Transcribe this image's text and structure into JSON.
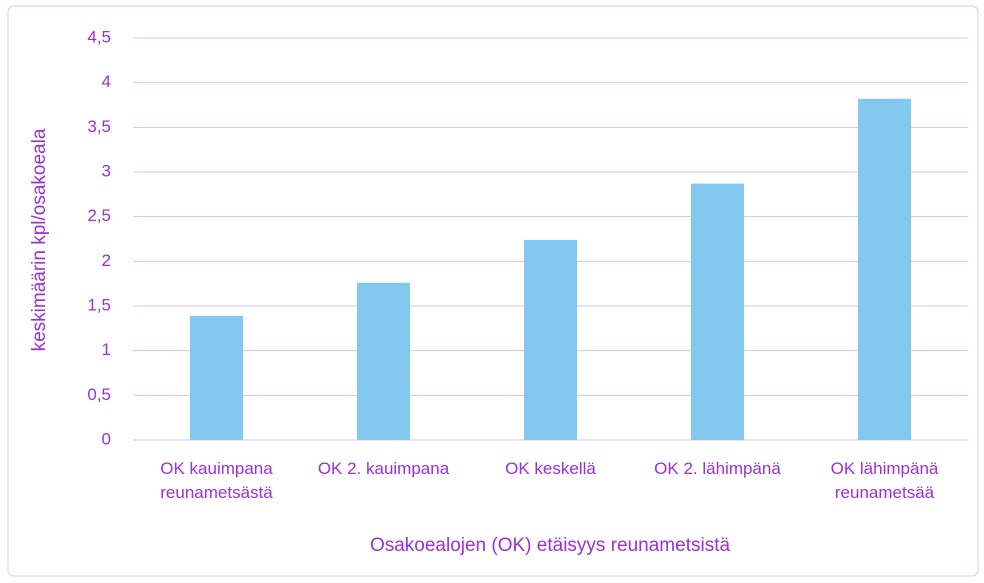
{
  "chart_data": {
    "type": "bar",
    "xlabel": "Osakoealojen (OK) etäisyys reunametsistä",
    "ylabel": "keskimäärin kpl/osakoeala",
    "categories": [
      "OK kauimpana reunametsästä",
      "OK 2. kauimpana",
      "OK keskellä",
      "OK 2. lähimpänä",
      "OK lähimpänä reunametsää"
    ],
    "values": [
      1.39,
      1.76,
      2.24,
      2.87,
      3.82
    ],
    "color": "#83c8ef",
    "ylim": [
      0,
      4.5
    ],
    "yticks": [
      0,
      {
        "value": 0.5,
        "label": "0,5"
      },
      1,
      {
        "value": 1.5,
        "label": "1,5"
      },
      2,
      {
        "value": 2.5,
        "label": "2,5"
      },
      3,
      {
        "value": 3.5,
        "label": "3,5"
      },
      4,
      {
        "value": 4.5,
        "label": "4,5"
      }
    ],
    "grid": true
  }
}
